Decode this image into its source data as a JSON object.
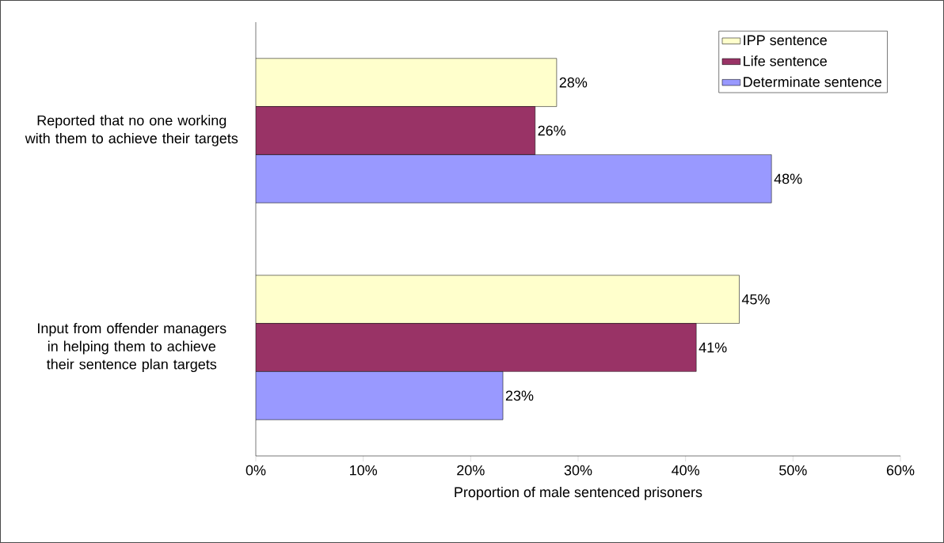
{
  "chart_data": {
    "type": "bar",
    "orientation": "horizontal",
    "xlabel": "Proportion of male sentenced prisoners",
    "categories": [
      "Reported that no one working with them to achieve their targets",
      "Input from offender managers in helping them to achieve their sentence plan targets"
    ],
    "series": [
      {
        "name": "IPP sentence",
        "color": "#ffffcc",
        "values": [
          28,
          45
        ],
        "value_labels": [
          "28%",
          "45%"
        ]
      },
      {
        "name": "Life sentence",
        "color": "#993366",
        "values": [
          26,
          41
        ],
        "value_labels": [
          "26%",
          "41%"
        ]
      },
      {
        "name": "Determinate sentence",
        "color": "#9999ff",
        "values": [
          48,
          23
        ],
        "value_labels": [
          "48%",
          "23%"
        ]
      }
    ],
    "xlim": [
      0,
      60
    ],
    "xticks": [
      {
        "value": 0,
        "label": "0%"
      },
      {
        "value": 10,
        "label": "10%"
      },
      {
        "value": 20,
        "label": "20%"
      },
      {
        "value": 30,
        "label": "30%"
      },
      {
        "value": 40,
        "label": "40%"
      },
      {
        "value": 50,
        "label": "50%"
      },
      {
        "value": 60,
        "label": "60%"
      }
    ],
    "grid": false,
    "legend": "top right"
  }
}
